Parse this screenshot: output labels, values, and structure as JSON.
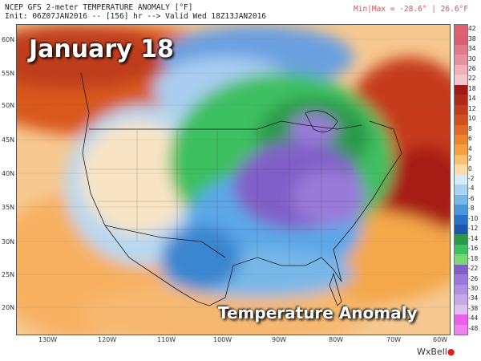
{
  "header": {
    "title": "NCEP GFS 2-meter TEMPERATURE ANOMALY [°F]",
    "init_line": "Init: 06Z07JAN2016 -- [156] hr --> Valid Wed 18Z13JAN2016",
    "minmax": "Min|Max = -28.6° | 26.6°F"
  },
  "overlay": {
    "date_text": "January 18",
    "caption": "Temperature Anomaly"
  },
  "axes": {
    "lat_labels": [
      "60N",
      "55N",
      "50N",
      "45N",
      "40N",
      "35N",
      "30N",
      "25N",
      "20N"
    ],
    "lon_labels": [
      "130W",
      "120W",
      "110W",
      "100W",
      "90W",
      "80W",
      "70W",
      "60W"
    ]
  },
  "colorbar": {
    "labels": [
      "42",
      "38",
      "34",
      "30",
      "26",
      "22",
      "18",
      "14",
      "12",
      "10",
      "8",
      "6",
      "4",
      "2",
      "0",
      "-2",
      "-4",
      "-6",
      "-8",
      "-10",
      "-12",
      "-14",
      "-16",
      "-18",
      "-22",
      "-26",
      "-30",
      "-34",
      "-38",
      "-44",
      "-48"
    ],
    "colors": [
      "#e06070",
      "#d86070",
      "#e07a88",
      "#e890a0",
      "#f0b0b8",
      "#f4c8cc",
      "#a01818",
      "#b02a1a",
      "#c03c1c",
      "#d05020",
      "#e06828",
      "#ec8430",
      "#f4a040",
      "#f8c070",
      "#fcdca8",
      "#d8ecf8",
      "#a8d4f0",
      "#78b8e8",
      "#4a96d8",
      "#2a72c8",
      "#1e56b0",
      "#2a9a4a",
      "#3cc060",
      "#7ad870",
      "#8060c8",
      "#9a7ad8",
      "#b090e0",
      "#c8a8e8",
      "#dcc0f0",
      "#ec60e8",
      "#f080f0"
    ]
  },
  "brand": {
    "name": "WxBell"
  }
}
